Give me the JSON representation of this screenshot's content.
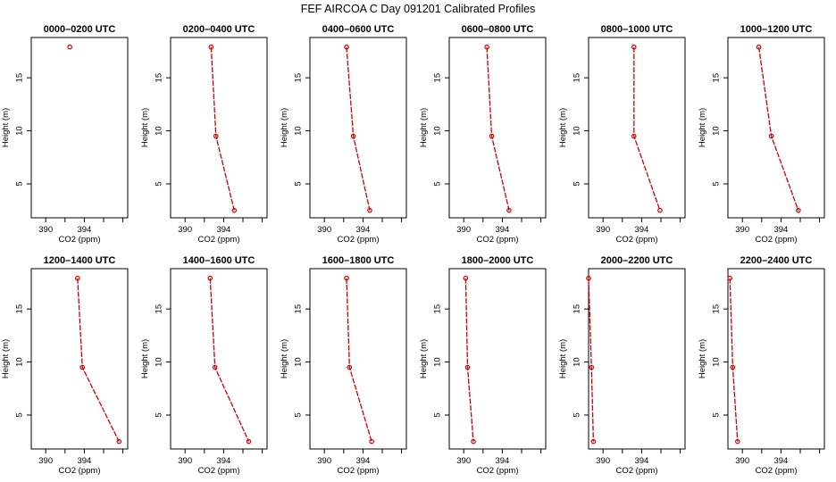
{
  "title": "FEF AIRCOA C  Day 091201  Calibrated Profiles",
  "series_color": "#d00000",
  "chart_data": {
    "type": "line",
    "xlabel": "CO2 (ppm)",
    "ylabel": "Height (m)",
    "xlim": [
      388.5,
      398.5
    ],
    "ylim": [
      1.8,
      18.8
    ],
    "xticks": [
      390,
      394
    ],
    "yticks": [
      5,
      10,
      15
    ],
    "panels": [
      {
        "title": "0000–0200 UTC",
        "points": [
          {
            "x": 392.5,
            "y": 17.9
          }
        ]
      },
      {
        "title": "0200–0400 UTC",
        "points": [
          {
            "x": 392.7,
            "y": 17.9
          },
          {
            "x": 393.2,
            "y": 9.5
          },
          {
            "x": 395.1,
            "y": 2.5
          }
        ]
      },
      {
        "title": "0400–0600 UTC",
        "points": [
          {
            "x": 392.3,
            "y": 17.9
          },
          {
            "x": 393.0,
            "y": 9.5
          },
          {
            "x": 394.7,
            "y": 2.5
          }
        ]
      },
      {
        "title": "0600–0800 UTC",
        "points": [
          {
            "x": 392.4,
            "y": 17.9
          },
          {
            "x": 392.9,
            "y": 9.5
          },
          {
            "x": 394.7,
            "y": 2.5
          }
        ]
      },
      {
        "title": "0800–1000 UTC",
        "points": [
          {
            "x": 393.2,
            "y": 17.9
          },
          {
            "x": 393.2,
            "y": 9.5
          },
          {
            "x": 395.9,
            "y": 2.5
          }
        ]
      },
      {
        "title": "1000–1200 UTC",
        "points": [
          {
            "x": 391.7,
            "y": 17.9
          },
          {
            "x": 393.0,
            "y": 9.5
          },
          {
            "x": 395.8,
            "y": 2.5
          }
        ]
      },
      {
        "title": "1200–1400 UTC",
        "points": [
          {
            "x": 393.3,
            "y": 17.9
          },
          {
            "x": 393.8,
            "y": 9.5
          },
          {
            "x": 397.6,
            "y": 2.5
          }
        ]
      },
      {
        "title": "1400–1600 UTC",
        "points": [
          {
            "x": 392.6,
            "y": 17.9
          },
          {
            "x": 393.1,
            "y": 9.5
          },
          {
            "x": 396.6,
            "y": 2.5
          }
        ]
      },
      {
        "title": "1600–1800 UTC",
        "points": [
          {
            "x": 392.3,
            "y": 17.9
          },
          {
            "x": 392.6,
            "y": 9.5
          },
          {
            "x": 394.9,
            "y": 2.5
          }
        ]
      },
      {
        "title": "1800–2000 UTC",
        "points": [
          {
            "x": 390.2,
            "y": 17.9
          },
          {
            "x": 390.4,
            "y": 9.5
          },
          {
            "x": 391.0,
            "y": 2.5
          }
        ]
      },
      {
        "title": "2000–2200 UTC",
        "points": [
          {
            "x": 388.5,
            "y": 17.9
          },
          {
            "x": 388.8,
            "y": 9.5
          },
          {
            "x": 389.0,
            "y": 2.5
          }
        ]
      },
      {
        "title": "2200–2400 UTC",
        "points": [
          {
            "x": 388.7,
            "y": 17.9
          },
          {
            "x": 389.0,
            "y": 9.5
          },
          {
            "x": 389.5,
            "y": 2.5
          }
        ]
      }
    ]
  }
}
